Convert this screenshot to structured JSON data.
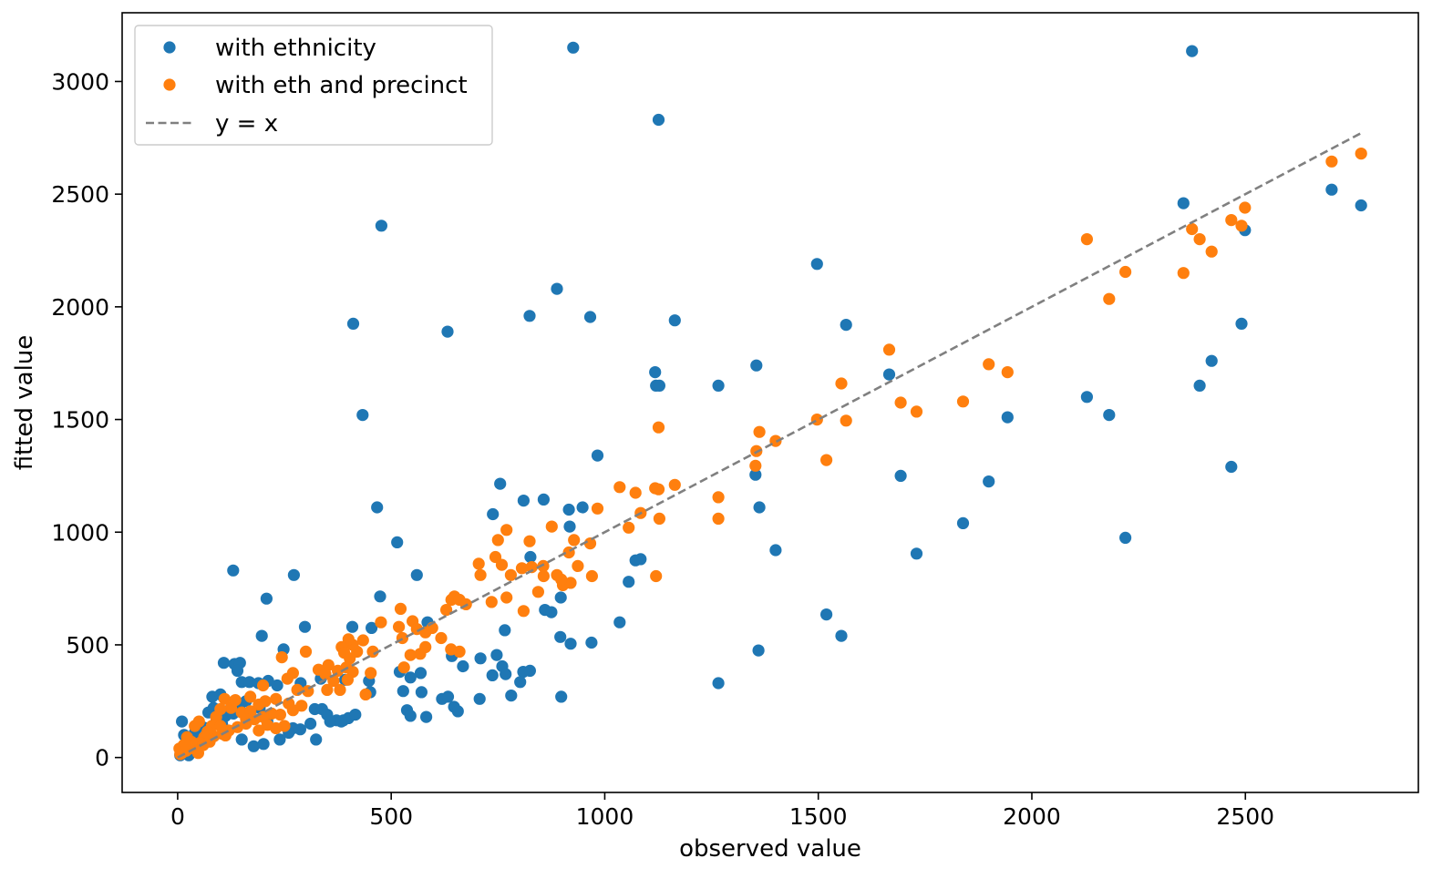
{
  "chart_data": {
    "type": "scatter",
    "title": "",
    "xlabel": "observed value",
    "ylabel": "fitted value",
    "xlim": [
      -130,
      2905
    ],
    "ylim": [
      -155,
      3305
    ],
    "xticks": [
      0,
      500,
      1000,
      1500,
      2000,
      2500
    ],
    "yticks": [
      0,
      500,
      1000,
      1500,
      2000,
      2500,
      3000
    ],
    "grid": false,
    "legend_position": "top-left",
    "series": [
      {
        "name": "with ethnicity",
        "type": "scatter",
        "color": "#1f77b4",
        "points": [
          [
            926,
            3150
          ],
          [
            2375,
            3135
          ],
          [
            1126,
            2830
          ],
          [
            477,
            2360
          ],
          [
            2355,
            2460
          ],
          [
            2702,
            2520
          ],
          [
            2771,
            2450
          ],
          [
            2499,
            2340
          ],
          [
            1497,
            2190
          ],
          [
            888,
            2080
          ],
          [
            411,
            1925
          ],
          [
            632,
            1890
          ],
          [
            824,
            1960
          ],
          [
            966,
            1955
          ],
          [
            1164,
            1940
          ],
          [
            1565,
            1920
          ],
          [
            2491,
            1925
          ],
          [
            1118,
            1710
          ],
          [
            1355,
            1740
          ],
          [
            1666,
            1700
          ],
          [
            2421,
            1760
          ],
          [
            1120,
            1650
          ],
          [
            1128,
            1650
          ],
          [
            1266,
            1650
          ],
          [
            2393,
            1650
          ],
          [
            433,
            1520
          ],
          [
            2129,
            1600
          ],
          [
            2181,
            1520
          ],
          [
            1943,
            1510
          ],
          [
            983,
            1340
          ],
          [
            1693,
            1250
          ],
          [
            1899,
            1225
          ],
          [
            2467,
            1290
          ],
          [
            755,
            1215
          ],
          [
            1353,
            1255
          ],
          [
            467,
            1110
          ],
          [
            738,
            1080
          ],
          [
            810,
            1140
          ],
          [
            857,
            1145
          ],
          [
            916,
            1100
          ],
          [
            948,
            1110
          ],
          [
            1362,
            1110
          ],
          [
            918,
            1025
          ],
          [
            1839,
            1040
          ],
          [
            514,
            955
          ],
          [
            1072,
            875
          ],
          [
            1084,
            880
          ],
          [
            1400,
            920
          ],
          [
            1730,
            905
          ],
          [
            2219,
            975
          ],
          [
            826,
            890
          ],
          [
            130,
            830
          ],
          [
            272,
            810
          ],
          [
            560,
            810
          ],
          [
            1056,
            780
          ],
          [
            208,
            705
          ],
          [
            474,
            715
          ],
          [
            860,
            655
          ],
          [
            875,
            645
          ],
          [
            897,
            710
          ],
          [
            1519,
            635
          ],
          [
            1035,
            600
          ],
          [
            298,
            580
          ],
          [
            409,
            580
          ],
          [
            454,
            575
          ],
          [
            197,
            540
          ],
          [
            585,
            600
          ],
          [
            766,
            565
          ],
          [
            896,
            535
          ],
          [
            920,
            505
          ],
          [
            969,
            510
          ],
          [
            1554,
            540
          ],
          [
            248,
            480
          ],
          [
            108,
            420
          ],
          [
            133,
            415
          ],
          [
            146,
            420
          ],
          [
            140,
            385
          ],
          [
            520,
            380
          ],
          [
            545,
            355
          ],
          [
            569,
            375
          ],
          [
            642,
            450
          ],
          [
            709,
            440
          ],
          [
            747,
            455
          ],
          [
            1360,
            475
          ],
          [
            668,
            405
          ],
          [
            760,
            405
          ],
          [
            768,
            370
          ],
          [
            809,
            380
          ],
          [
            737,
            365
          ],
          [
            802,
            335
          ],
          [
            825,
            385
          ],
          [
            1266,
            330
          ],
          [
            150,
            335
          ],
          [
            168,
            335
          ],
          [
            189,
            330
          ],
          [
            212,
            340
          ],
          [
            233,
            320
          ],
          [
            288,
            330
          ],
          [
            335,
            350
          ],
          [
            392,
            345
          ],
          [
            448,
            340
          ],
          [
            451,
            290
          ],
          [
            528,
            295
          ],
          [
            571,
            290
          ],
          [
            619,
            260
          ],
          [
            633,
            270
          ],
          [
            647,
            225
          ],
          [
            656,
            205
          ],
          [
            707,
            260
          ],
          [
            781,
            275
          ],
          [
            898,
            270
          ],
          [
            537,
            210
          ],
          [
            545,
            185
          ],
          [
            582,
            180
          ],
          [
            321,
            215
          ],
          [
            338,
            215
          ],
          [
            350,
            190
          ],
          [
            372,
            165
          ],
          [
            388,
            165
          ],
          [
            400,
            175
          ],
          [
            416,
            190
          ],
          [
            357,
            160
          ],
          [
            383,
            160
          ],
          [
            324,
            80
          ],
          [
            239,
            80
          ],
          [
            260,
            110
          ],
          [
            270,
            130
          ],
          [
            287,
            125
          ],
          [
            311,
            150
          ],
          [
            178,
            50
          ],
          [
            201,
            60
          ],
          [
            59,
            80
          ],
          [
            72,
            200
          ],
          [
            81,
            270
          ],
          [
            100,
            280
          ],
          [
            84,
            220
          ],
          [
            91,
            165
          ],
          [
            112,
            185
          ],
          [
            120,
            210
          ],
          [
            130,
            195
          ],
          [
            10,
            160
          ],
          [
            15,
            100
          ],
          [
            30,
            80
          ],
          [
            40,
            110
          ],
          [
            52,
            60
          ],
          [
            68,
            130
          ],
          [
            14,
            40
          ],
          [
            22,
            25
          ],
          [
            26,
            10
          ],
          [
            6,
            10
          ],
          [
            8,
            30
          ],
          [
            136,
            250
          ],
          [
            170,
            190
          ],
          [
            192,
            220
          ],
          [
            145,
            230
          ],
          [
            160,
            250
          ],
          [
            104,
            150
          ],
          [
            118,
            120
          ],
          [
            55,
            140
          ],
          [
            150,
            80
          ],
          [
            210,
            160
          ]
        ]
      },
      {
        "name": "with eth and precinct",
        "type": "scatter",
        "color": "#ff7f0e",
        "points": [
          [
            2771,
            2680
          ],
          [
            2702,
            2645
          ],
          [
            2499,
            2440
          ],
          [
            2467,
            2385
          ],
          [
            2491,
            2360
          ],
          [
            2375,
            2345
          ],
          [
            2393,
            2300
          ],
          [
            2421,
            2245
          ],
          [
            2129,
            2300
          ],
          [
            2219,
            2155
          ],
          [
            2355,
            2150
          ],
          [
            2181,
            2035
          ],
          [
            1666,
            1810
          ],
          [
            1899,
            1745
          ],
          [
            1943,
            1710
          ],
          [
            1554,
            1660
          ],
          [
            1693,
            1575
          ],
          [
            1730,
            1535
          ],
          [
            1839,
            1580
          ],
          [
            1497,
            1500
          ],
          [
            1565,
            1495
          ],
          [
            1126,
            1465
          ],
          [
            1362,
            1445
          ],
          [
            1400,
            1405
          ],
          [
            1355,
            1360
          ],
          [
            1353,
            1295
          ],
          [
            1519,
            1320
          ],
          [
            1164,
            1210
          ],
          [
            1035,
            1200
          ],
          [
            1072,
            1175
          ],
          [
            1118,
            1195
          ],
          [
            1126,
            1190
          ],
          [
            1266,
            1155
          ],
          [
            1266,
            1060
          ],
          [
            1128,
            1060
          ],
          [
            983,
            1105
          ],
          [
            1084,
            1085
          ],
          [
            1056,
            1020
          ],
          [
            770,
            1010
          ],
          [
            750,
            965
          ],
          [
            824,
            960
          ],
          [
            876,
            1025
          ],
          [
            916,
            910
          ],
          [
            928,
            965
          ],
          [
            966,
            950
          ],
          [
            744,
            890
          ],
          [
            705,
            860
          ],
          [
            759,
            855
          ],
          [
            806,
            840
          ],
          [
            829,
            845
          ],
          [
            856,
            850
          ],
          [
            888,
            810
          ],
          [
            902,
            765
          ],
          [
            920,
            775
          ],
          [
            937,
            850
          ],
          [
            970,
            805
          ],
          [
            1120,
            805
          ],
          [
            709,
            810
          ],
          [
            780,
            810
          ],
          [
            857,
            805
          ],
          [
            898,
            790
          ],
          [
            648,
            715
          ],
          [
            641,
            700
          ],
          [
            660,
            700
          ],
          [
            735,
            690
          ],
          [
            770,
            710
          ],
          [
            810,
            650
          ],
          [
            844,
            735
          ],
          [
            675,
            680
          ],
          [
            629,
            655
          ],
          [
            522,
            660
          ],
          [
            550,
            605
          ],
          [
            518,
            580
          ],
          [
            560,
            570
          ],
          [
            580,
            555
          ],
          [
            596,
            575
          ],
          [
            526,
            530
          ],
          [
            617,
            530
          ],
          [
            476,
            600
          ],
          [
            434,
            520
          ],
          [
            457,
            470
          ],
          [
            420,
            470
          ],
          [
            410,
            500
          ],
          [
            400,
            525
          ],
          [
            384,
            490
          ],
          [
            390,
            465
          ],
          [
            403,
            440
          ],
          [
            353,
            410
          ],
          [
            330,
            390
          ],
          [
            300,
            470
          ],
          [
            244,
            445
          ],
          [
            257,
            350
          ],
          [
            270,
            375
          ],
          [
            280,
            300
          ],
          [
            305,
            295
          ],
          [
            346,
            370
          ],
          [
            365,
            340
          ],
          [
            375,
            385
          ],
          [
            395,
            400
          ],
          [
            410,
            380
          ],
          [
            398,
            345
          ],
          [
            380,
            300
          ],
          [
            350,
            300
          ],
          [
            568,
            460
          ],
          [
            545,
            455
          ],
          [
            580,
            490
          ],
          [
            530,
            400
          ],
          [
            640,
            480
          ],
          [
            660,
            470
          ],
          [
            452,
            375
          ],
          [
            440,
            280
          ],
          [
            200,
            320
          ],
          [
            170,
            270
          ],
          [
            190,
            235
          ],
          [
            205,
            250
          ],
          [
            230,
            260
          ],
          [
            260,
            240
          ],
          [
            270,
            210
          ],
          [
            290,
            230
          ],
          [
            240,
            190
          ],
          [
            220,
            195
          ],
          [
            200,
            180
          ],
          [
            180,
            170
          ],
          [
            210,
            145
          ],
          [
            250,
            140
          ],
          [
            160,
            150
          ],
          [
            150,
            200
          ],
          [
            125,
            220
          ],
          [
            135,
            255
          ],
          [
            110,
            260
          ],
          [
            100,
            215
          ],
          [
            90,
            180
          ],
          [
            140,
            135
          ],
          [
            120,
            120
          ],
          [
            105,
            105
          ],
          [
            85,
            95
          ],
          [
            80,
            140
          ],
          [
            70,
            115
          ],
          [
            62,
            90
          ],
          [
            50,
            160
          ],
          [
            40,
            140
          ],
          [
            52,
            65
          ],
          [
            45,
            50
          ],
          [
            32,
            70
          ],
          [
            28,
            40
          ],
          [
            20,
            30
          ],
          [
            14,
            55
          ],
          [
            10,
            20
          ],
          [
            6,
            15
          ],
          [
            4,
            40
          ],
          [
            22,
            90
          ],
          [
            18,
            60
          ],
          [
            60,
            55
          ],
          [
            75,
            70
          ],
          [
            48,
            20
          ],
          [
            100,
            140
          ],
          [
            170,
            205
          ],
          [
            160,
            170
          ],
          [
            190,
            120
          ],
          [
            230,
            130
          ],
          [
            112,
            98
          ]
        ]
      },
      {
        "name": "y = x",
        "type": "line",
        "color": "#808080",
        "dash": "dashed",
        "x": [
          0,
          2771
        ],
        "y": [
          0,
          2771
        ]
      }
    ]
  }
}
